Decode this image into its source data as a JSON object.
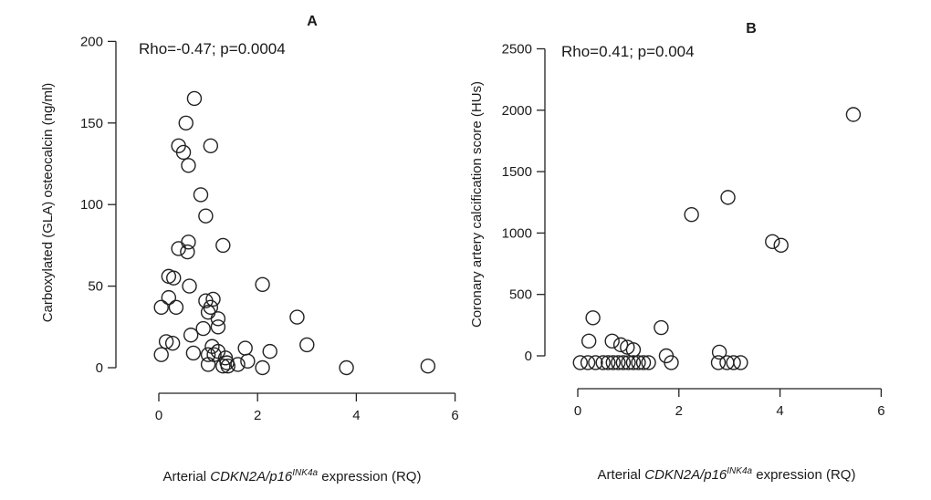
{
  "chart_data": [
    {
      "type": "scatter",
      "title": "A",
      "annotation": "Rho=-0.47; p=0.0004",
      "ylabel": "Carboxylated (GLA) osteocalcin (ng/ml)",
      "xlabel_prefix": "Arterial ",
      "xlabel_gene": "CDKN2A/p16",
      "xlabel_sup": "INK4a",
      "xlabel_suffix": " expression (RQ)",
      "xlim": [
        0,
        6
      ],
      "ylim": [
        0,
        200
      ],
      "xticks": [
        0,
        2,
        4,
        6
      ],
      "yticks": [
        0,
        50,
        100,
        150,
        200
      ],
      "x": [
        0.72,
        0.55,
        0.4,
        0.5,
        0.6,
        1.05,
        0.85,
        0.95,
        0.6,
        1.3,
        0.4,
        0.58,
        0.2,
        0.3,
        0.62,
        0.2,
        0.05,
        0.35,
        0.95,
        1.1,
        1.05,
        1.2,
        2.1,
        2.8,
        0.9,
        1.0,
        1.2,
        0.65,
        0.15,
        0.28,
        1.08,
        1.75,
        0.05,
        0.7,
        1.2,
        3.0,
        1.0,
        2.25,
        1.8,
        1.12,
        1.35,
        1.0,
        1.38,
        1.6,
        1.3,
        1.4,
        2.1,
        3.8,
        5.45
      ],
      "y": [
        165,
        150,
        136,
        132,
        124,
        136,
        106,
        93,
        77,
        75,
        73,
        71,
        56,
        55,
        50,
        43,
        37,
        37,
        41,
        42,
        37,
        30,
        51,
        31,
        24,
        34,
        25,
        20,
        16,
        15,
        13,
        12,
        8,
        9,
        10,
        14,
        8,
        10,
        4,
        8,
        6,
        2,
        3,
        2,
        1,
        1,
        0,
        0,
        1
      ],
      "names": []
    },
    {
      "type": "scatter",
      "title": "B",
      "annotation": "Rho=0.41; p=0.004",
      "ylabel": "Coronary artery calcification score (HUs)",
      "xlabel_prefix": "Arterial ",
      "xlabel_gene": "CDKN2A/p16",
      "xlabel_sup": "INK4a",
      "xlabel_suffix": " expression (RQ)",
      "xlim": [
        0,
        6
      ],
      "ylim": [
        -100,
        2500
      ],
      "xticks": [
        0,
        2,
        4,
        6
      ],
      "yticks": [
        0,
        500,
        1000,
        1500,
        2000,
        2500
      ],
      "x": [
        5.45,
        2.97,
        2.25,
        3.85,
        4.02,
        0.3,
        1.65,
        0.22,
        0.68,
        0.85,
        0.98,
        1.1,
        1.75,
        2.8,
        0.05,
        0.2,
        0.35,
        0.5,
        0.6,
        0.7,
        0.8,
        0.9,
        1.0,
        1.1,
        1.2,
        1.3,
        1.4,
        1.85,
        2.78,
        2.95,
        3.08,
        3.22
      ],
      "y": [
        1965,
        1290,
        1150,
        930,
        900,
        310,
        230,
        120,
        120,
        90,
        70,
        50,
        0,
        30,
        -55,
        -55,
        -55,
        -55,
        -55,
        -55,
        -55,
        -55,
        -55,
        -55,
        -55,
        -55,
        -55,
        -55,
        -55,
        -55,
        -55,
        -55
      ]
    }
  ]
}
